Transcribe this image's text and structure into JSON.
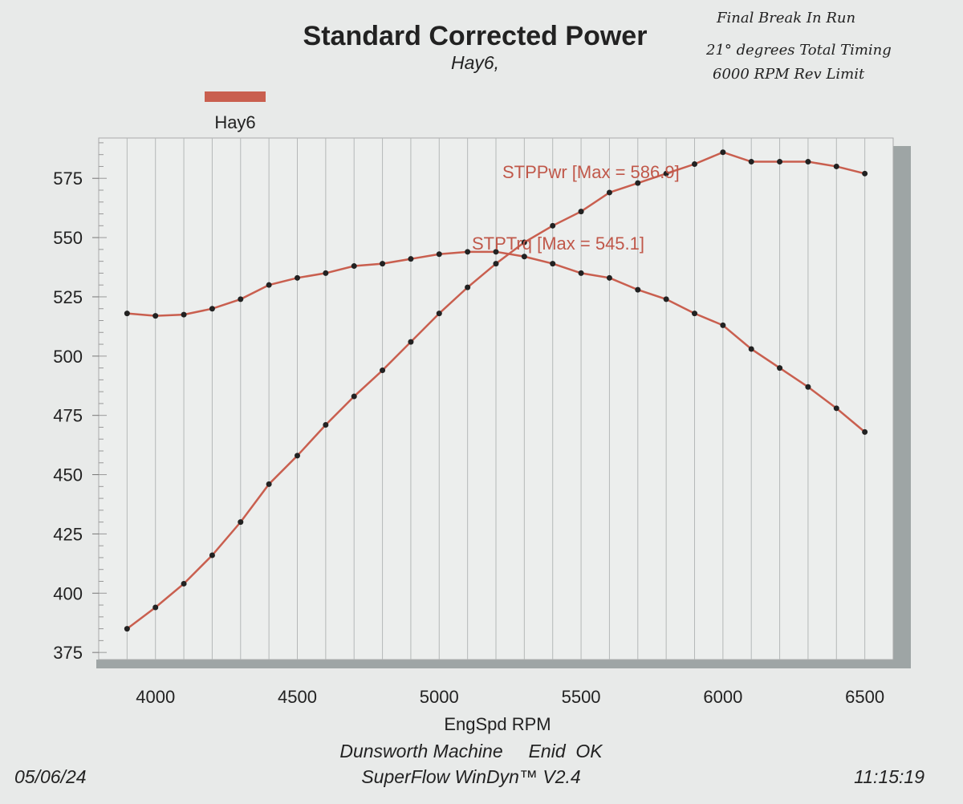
{
  "header": {
    "title": "Standard Corrected Power",
    "subtitle": "Hay6,"
  },
  "handwritten_note": [
    "Final Break In Run",
    "21° degrees Total Timing",
    "6000 RPM Rev Limit"
  ],
  "footer": {
    "shop": "Dunsworth Machine     Enid  OK",
    "software": "SuperFlow WinDyn™ V2.4",
    "date": "05/06/24",
    "time": "11:15:19"
  },
  "colors": {
    "series": "#c95f4f",
    "marker": "#222222",
    "grid": "#b5b8b8",
    "shadow": "#9ea5a5",
    "paper": "#e8eae9"
  },
  "chart_data": {
    "type": "line",
    "title": "Standard Corrected Power",
    "subtitle": "Hay6,",
    "xlabel": "EngSpd  RPM",
    "ylabel": "",
    "xlim": [
      3800,
      6600
    ],
    "ylim": [
      372,
      592
    ],
    "xticks": [
      4000,
      4500,
      5000,
      5500,
      6000,
      6500
    ],
    "yticks": [
      375,
      400,
      425,
      450,
      475,
      500,
      525,
      550,
      575
    ],
    "grid": "vertical lines every 100 RPM",
    "legend": {
      "entries": [
        "Hay6"
      ],
      "placement": "top-left"
    },
    "x": [
      3900,
      4000,
      4100,
      4200,
      4300,
      4400,
      4500,
      4600,
      4700,
      4800,
      4900,
      5000,
      5100,
      5200,
      5300,
      5400,
      5500,
      5600,
      5700,
      5800,
      5900,
      6000,
      6100,
      6200,
      6300,
      6400,
      6500
    ],
    "series": [
      {
        "label": "STPPwr [Max = 586.9]",
        "values": [
          385,
          394,
          404,
          416,
          430,
          446,
          458,
          471,
          483,
          494,
          506,
          518,
          529,
          539,
          548,
          555,
          561,
          569,
          573,
          577,
          581,
          586,
          582,
          582,
          582,
          580,
          577
        ]
      },
      {
        "label": "STPTrq [Max = 545.1]",
        "values": [
          518,
          517,
          517.5,
          520,
          524,
          530,
          533,
          535,
          538,
          539,
          541,
          543,
          544,
          544,
          542,
          539,
          535,
          533,
          528,
          524,
          518,
          513,
          503,
          495,
          487,
          478,
          468
        ]
      }
    ]
  }
}
